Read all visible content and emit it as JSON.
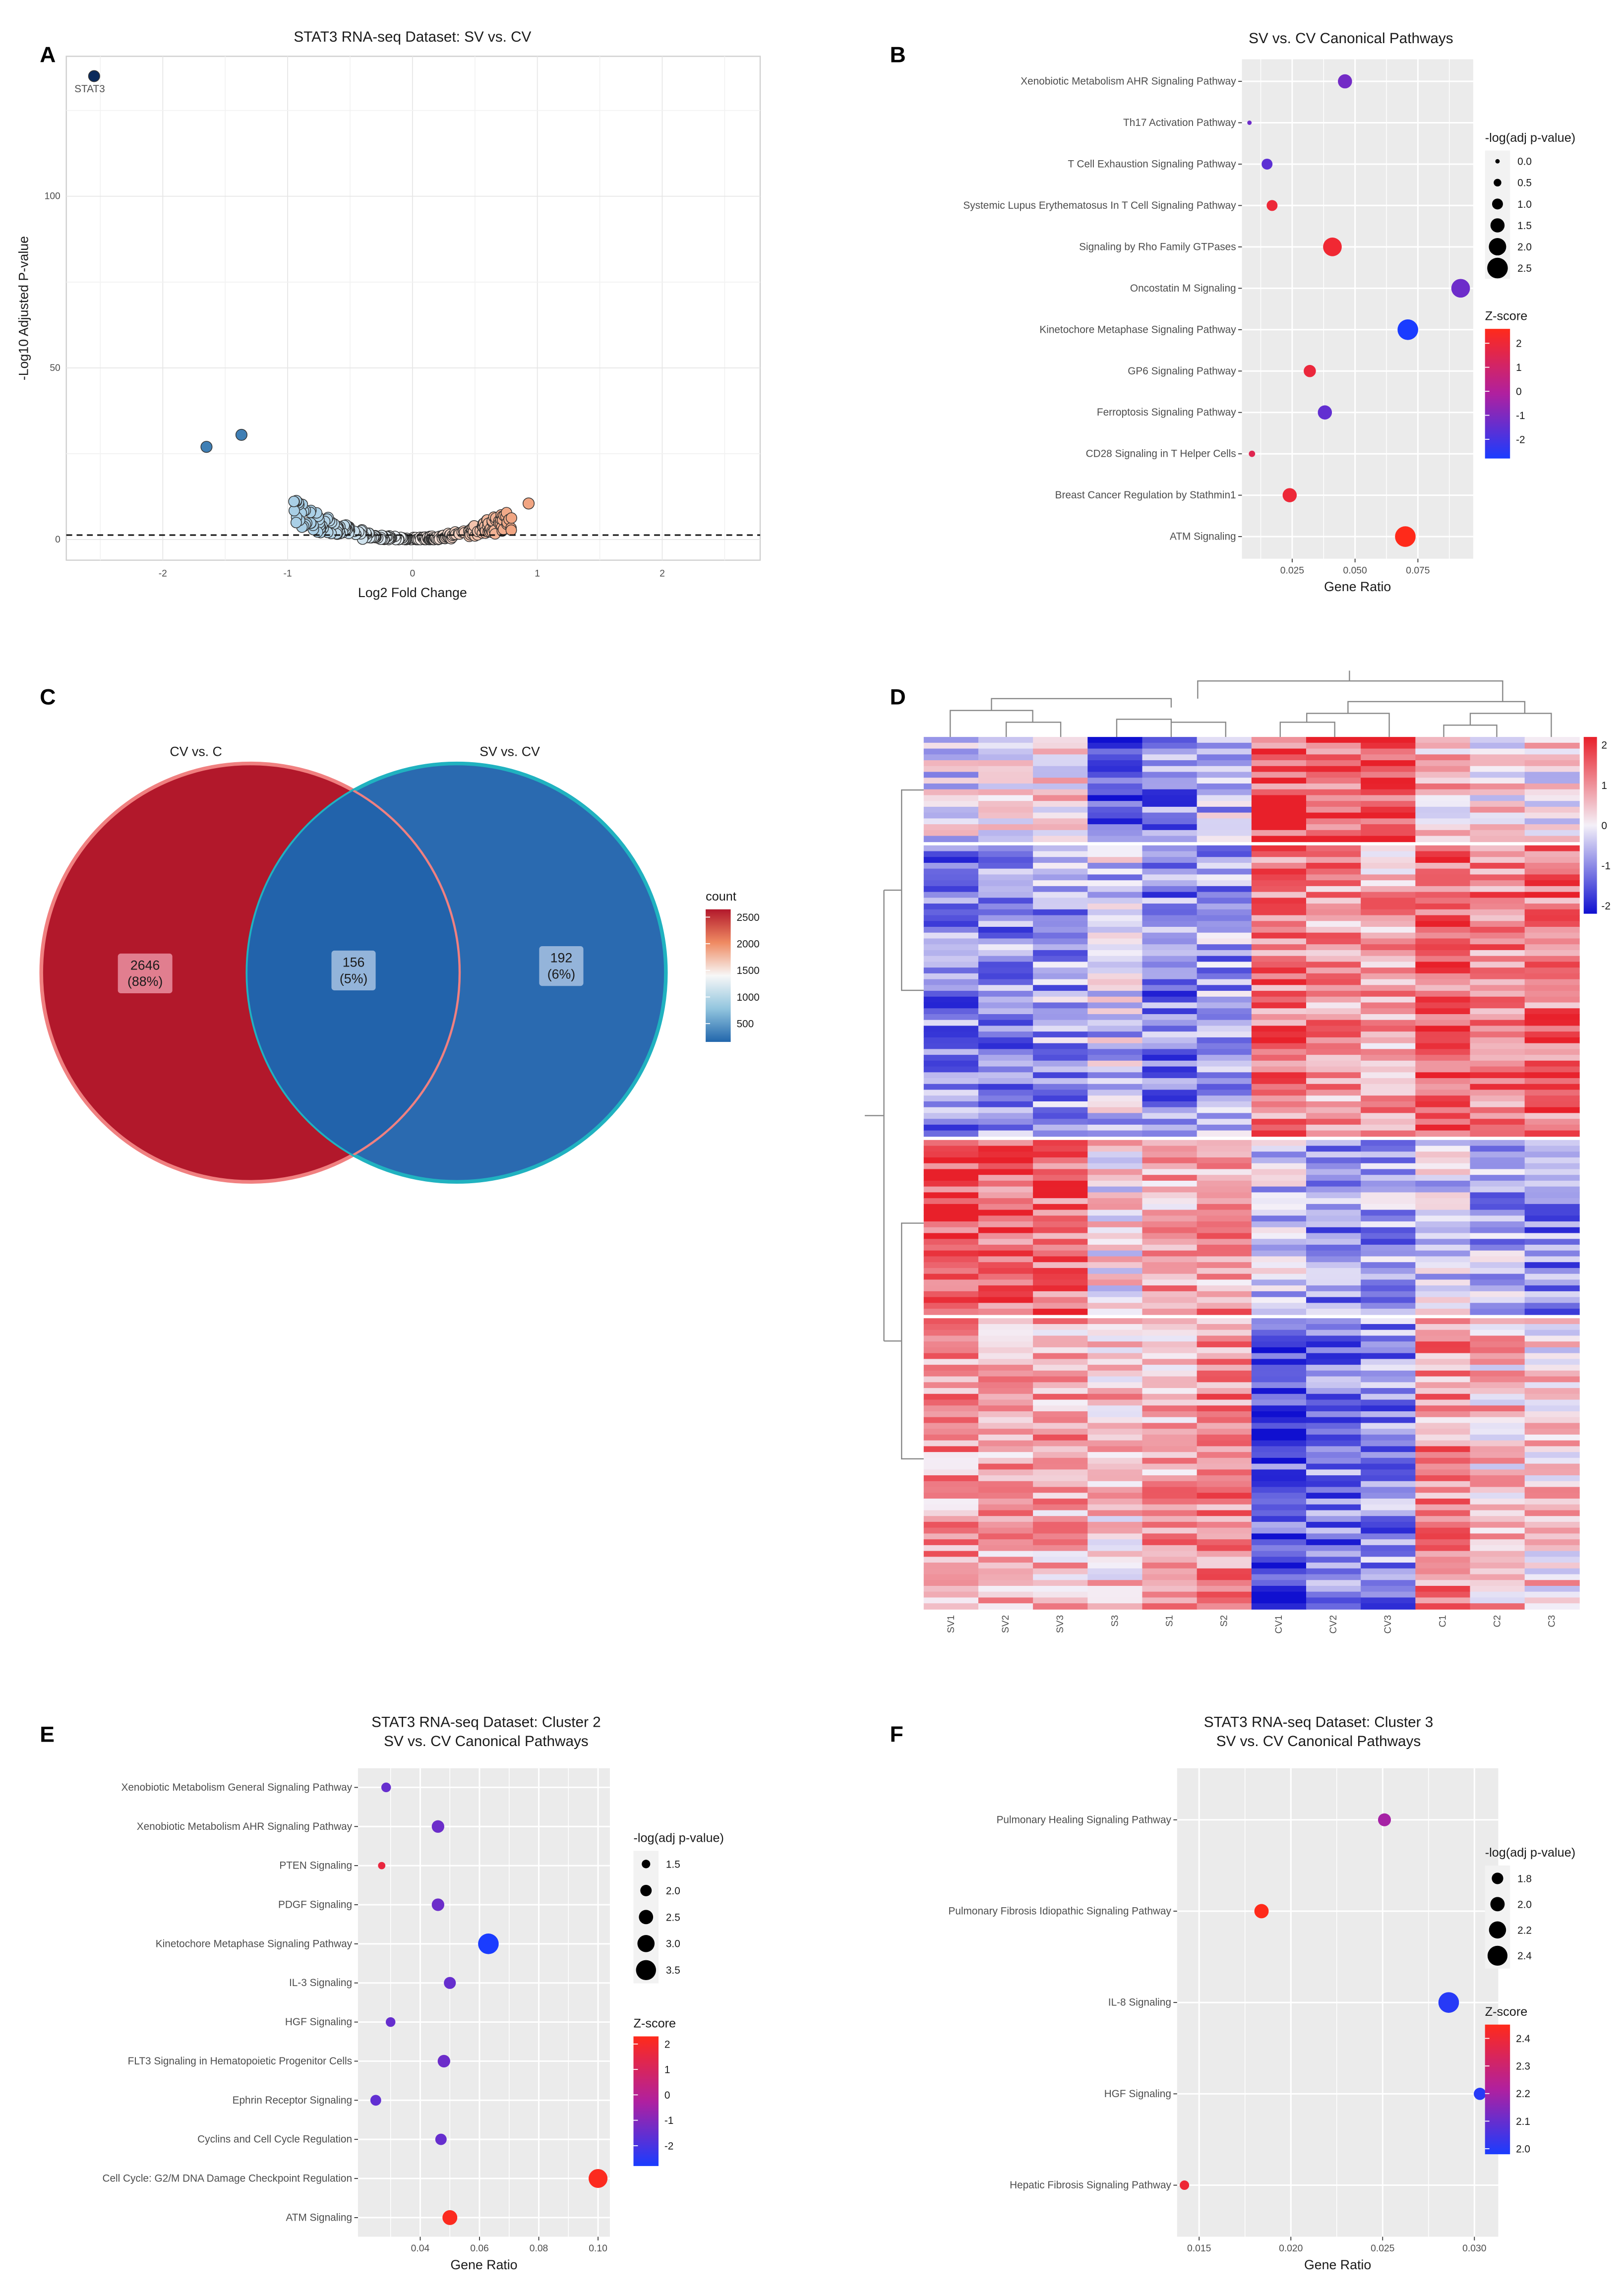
{
  "panels": {
    "A": "A",
    "B": "B",
    "C": "C",
    "D": "D",
    "E": "E",
    "F": "F"
  },
  "chart_data": [
    {
      "id": "A",
      "type": "scatter",
      "title": "STAT3 RNA-seq Dataset: SV vs. CV",
      "xlabel": "Log2 Fold Change",
      "ylabel": "-Log10 Adjusted P-value",
      "xlim": [
        -2.8,
        2.8
      ],
      "ylim": [
        -6,
        142
      ],
      "xticks": [
        "-2",
        "-1",
        "0",
        "1",
        "2"
      ],
      "yticks": [
        "0",
        "50",
        "100"
      ],
      "threshold_y": 1.3,
      "labeled_points": [
        {
          "label": "STAT3",
          "x": -2.55,
          "y": 135
        }
      ],
      "points": [
        {
          "x": -2.55,
          "y": 135
        },
        {
          "x": -1.65,
          "y": 27
        },
        {
          "x": -1.37,
          "y": 30.5
        },
        {
          "x": 0.93,
          "y": 10.5
        }
      ],
      "cloud_note": "dense cluster of genes between -0.95 and 0.8 log2FC with -log10 padj below 15",
      "colors": {
        "strong_down": "#0b2a5b",
        "down": "#3f7fb5",
        "light_down": "#a9cfe6",
        "neutral": "#f4f4f4",
        "up": "#f1a582"
      }
    },
    {
      "id": "B",
      "type": "scatter",
      "title": "SV vs. CV Canonical Pathways",
      "xlabel": "Gene Ratio",
      "xlim": [
        0.005,
        0.097
      ],
      "xticks": [
        0.025,
        0.05,
        0.075
      ],
      "xtick_labels": [
        "0.025",
        "0.050",
        "0.075"
      ],
      "size_legend_title": "-log(adj p-value)",
      "size_legend": [
        "0.0",
        "0.5",
        "1.0",
        "1.5",
        "2.0",
        "2.5"
      ],
      "size_range": [
        0,
        2.5
      ],
      "color_legend_title": "Z-score",
      "color_legend": [
        "2",
        "1",
        "0",
        "-1",
        "-2"
      ],
      "color_range": [
        -2.8,
        2.6
      ],
      "pathways": [
        {
          "name": "Xenobiotic Metabolism AHR Signaling Pathway",
          "ratio": 0.046,
          "neglogp": 1.5,
          "z": -1.2
        },
        {
          "name": "Th17 Activation Pathway",
          "ratio": 0.008,
          "neglogp": 0.0,
          "z": -1.3
        },
        {
          "name": "T Cell Exhaustion Signaling Pathway",
          "ratio": 0.015,
          "neglogp": 1.0,
          "z": -1.6
        },
        {
          "name": "Systemic Lupus Erythematosus In T Cell Signaling Pathway",
          "ratio": 0.017,
          "neglogp": 1.0,
          "z": 2.0
        },
        {
          "name": "Signaling by Rho Family GTPases",
          "ratio": 0.041,
          "neglogp": 2.2,
          "z": 2.1
        },
        {
          "name": "Oncostatin M Signaling",
          "ratio": 0.092,
          "neglogp": 2.2,
          "z": -1.3
        },
        {
          "name": "Kinetochore Metaphase Signaling Pathway",
          "ratio": 0.071,
          "neglogp": 2.5,
          "z": -2.8
        },
        {
          "name": "GP6 Signaling Pathway",
          "ratio": 0.032,
          "neglogp": 1.2,
          "z": 1.9
        },
        {
          "name": "Ferroptosis Signaling Pathway",
          "ratio": 0.038,
          "neglogp": 1.5,
          "z": -1.5
        },
        {
          "name": "CD28 Signaling in T Helper Cells",
          "ratio": 0.009,
          "neglogp": 0.3,
          "z": 1.5
        },
        {
          "name": "Breast Cancer Regulation by Stathmin1",
          "ratio": 0.024,
          "neglogp": 1.5,
          "z": 2.0
        },
        {
          "name": "ATM Signaling",
          "ratio": 0.07,
          "neglogp": 2.5,
          "z": 2.6
        }
      ]
    },
    {
      "id": "C",
      "type": "venn",
      "sets": [
        "CV vs. C",
        "SV vs. CV"
      ],
      "regions": [
        {
          "set": "CV vs. C only",
          "count": "2646",
          "percent": "(88%)",
          "value": 2646
        },
        {
          "set": "both",
          "count": "156",
          "percent": "(5%)",
          "value": 156
        },
        {
          "set": "SV vs. CV only",
          "count": "192",
          "percent": "(6%)",
          "value": 192
        }
      ],
      "legend_title": "count",
      "legend_ticks": [
        "2500",
        "2000",
        "1500",
        "1000",
        "500"
      ],
      "colors": {
        "high": "#b2182b",
        "mid": "#f7f7f7",
        "low": "#2166ac",
        "edge_left": "#f08080",
        "edge_right": "#20b2c0"
      }
    },
    {
      "id": "D",
      "type": "heatmap",
      "columns": [
        "SV1",
        "SV2",
        "SV3",
        "S3",
        "S1",
        "S2",
        "CV1",
        "CV2",
        "CV3",
        "C1",
        "C2",
        "C3"
      ],
      "legend_ticks": [
        "2",
        "1",
        "0",
        "-1",
        "-2"
      ],
      "color_range": [
        -2.2,
        2.2
      ],
      "row_clusters": [
        {
          "rows": 18,
          "mean_z": [
            -0.2,
            0.3,
            0.4,
            -1.6,
            -1.1,
            -0.5,
            1.6,
            1.5,
            1.8,
            0.5,
            0.3,
            0.2
          ]
        },
        {
          "rows": 50,
          "mean_z": [
            -1.1,
            -1.0,
            -0.8,
            -0.4,
            -1.1,
            -0.8,
            1.3,
            1.0,
            0.8,
            1.5,
            1.2,
            1.3
          ]
        },
        {
          "rows": 30,
          "mean_z": [
            1.6,
            1.5,
            1.5,
            0.2,
            0.8,
            0.9,
            -0.5,
            -1.0,
            -0.8,
            -0.3,
            -0.7,
            -1.0
          ]
        },
        {
          "rows": 50,
          "mean_z": [
            0.9,
            0.9,
            0.8,
            0.5,
            0.8,
            1.0,
            -1.6,
            -1.2,
            -1.0,
            1.0,
            0.5,
            0.3
          ]
        }
      ]
    },
    {
      "id": "E",
      "type": "scatter",
      "title": "STAT3 RNA-seq Dataset: Cluster 2",
      "subtitle": "SV vs. CV Canonical Pathways",
      "xlabel": "Gene Ratio",
      "xlim": [
        0.019,
        0.104
      ],
      "xticks": [
        0.04,
        0.06,
        0.08,
        0.1
      ],
      "xtick_labels": [
        "0.04",
        "0.06",
        "0.08",
        "0.10"
      ],
      "size_legend_title": "-log(adj p-value)",
      "size_legend": [
        "1.5",
        "2.0",
        "2.5",
        "3.0",
        "3.5"
      ],
      "size_range": [
        1.2,
        3.6
      ],
      "color_legend_title": "Z-score",
      "color_legend": [
        "2",
        "1",
        "0",
        "-1",
        "-2"
      ],
      "color_range": [
        -2.8,
        2.3
      ],
      "pathways": [
        {
          "name": "Xenobiotic Metabolism General Signaling Pathway",
          "ratio": 0.0285,
          "neglogp": 1.7,
          "z": -1.5
        },
        {
          "name": "Xenobiotic Metabolism AHR Signaling Pathway",
          "ratio": 0.046,
          "neglogp": 2.2,
          "z": -1.4
        },
        {
          "name": "PTEN Signaling",
          "ratio": 0.027,
          "neglogp": 1.3,
          "z": 1.6
        },
        {
          "name": "PDGF Signaling",
          "ratio": 0.046,
          "neglogp": 2.2,
          "z": -1.4
        },
        {
          "name": "Kinetochore Metaphase Signaling Pathway",
          "ratio": 0.063,
          "neglogp": 3.6,
          "z": -2.8
        },
        {
          "name": "IL-3 Signaling",
          "ratio": 0.05,
          "neglogp": 2.1,
          "z": -1.5
        },
        {
          "name": "HGF Signaling",
          "ratio": 0.03,
          "neglogp": 1.7,
          "z": -1.5
        },
        {
          "name": "FLT3 Signaling in Hematopoietic Progenitor Cells",
          "ratio": 0.048,
          "neglogp": 2.2,
          "z": -1.4
        },
        {
          "name": "Ephrin Receptor Signaling",
          "ratio": 0.025,
          "neglogp": 1.9,
          "z": -1.6
        },
        {
          "name": "Cyclins and Cell Cycle Regulation",
          "ratio": 0.047,
          "neglogp": 2.0,
          "z": -1.5
        },
        {
          "name": "Cell Cycle: G2/M DNA Damage Checkpoint Regulation",
          "ratio": 0.1,
          "neglogp": 3.3,
          "z": 2.2
        },
        {
          "name": "ATM Signaling",
          "ratio": 0.05,
          "neglogp": 2.6,
          "z": 2.2
        }
      ]
    },
    {
      "id": "F",
      "type": "scatter",
      "title": "STAT3 RNA-seq Dataset: Cluster 3",
      "subtitle": "SV vs. CV Canonical Pathways",
      "xlabel": "Gene Ratio",
      "xlim": [
        0.0138,
        0.0313
      ],
      "xticks": [
        0.015,
        0.02,
        0.025,
        0.03
      ],
      "xtick_labels": [
        "0.015",
        "0.020",
        "0.025",
        "0.030"
      ],
      "size_legend_title": "-log(adj p-value)",
      "size_legend": [
        "1.8",
        "2.0",
        "2.2",
        "2.4"
      ],
      "size_range": [
        1.65,
        2.45
      ],
      "color_legend_title": "Z-score",
      "color_legend": [
        "2.4",
        "2.3",
        "2.2",
        "2.1",
        "2.0"
      ],
      "color_range": [
        1.98,
        2.45
      ],
      "pathways": [
        {
          "name": "Pulmonary Healing Signaling Pathway",
          "ratio": 0.0251,
          "neglogp": 1.9,
          "z": 2.2
        },
        {
          "name": "Pulmonary Fibrosis Idiopathic Signaling Pathway",
          "ratio": 0.0184,
          "neglogp": 2.0,
          "z": 2.45
        },
        {
          "name": "IL-8 Signaling",
          "ratio": 0.0286,
          "neglogp": 2.45,
          "z": 2.0
        },
        {
          "name": "HGF Signaling",
          "ratio": 0.0303,
          "neglogp": 1.85,
          "z": 2.0
        },
        {
          "name": "Hepatic Fibrosis Signaling Pathway",
          "ratio": 0.0142,
          "neglogp": 1.65,
          "z": 2.4
        }
      ]
    }
  ]
}
